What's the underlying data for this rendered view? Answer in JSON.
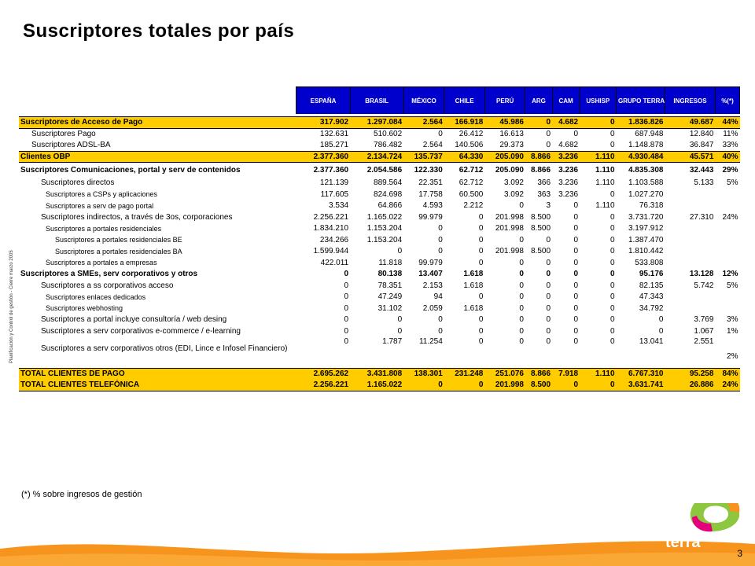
{
  "title": "Suscriptores totales por país",
  "side_note": "Planificación y Control de gestión - Cierre marzo 2005",
  "columns": [
    "ESPAÑA",
    "BRASIL",
    "MÉXICO",
    "CHILE",
    "PERÚ",
    "ARG",
    "CAM",
    "USHISP",
    "GRUPO TERRA",
    "INGRESOS",
    "%(*)"
  ],
  "rows": [
    {
      "label": "Suscriptores de Acceso de Pago",
      "values": [
        "317.902",
        "1.297.084",
        "2.564",
        "166.918",
        "45.986",
        "0",
        "4.682",
        "0",
        "1.836.826",
        "49.687",
        "44%"
      ]
    },
    {
      "label": "Suscriptores Pago",
      "values": [
        "132.631",
        "510.602",
        "0",
        "26.412",
        "16.613",
        "0",
        "0",
        "0",
        "687.948",
        "12.840",
        "11%"
      ]
    },
    {
      "label": "Suscriptores ADSL-BA",
      "values": [
        "185.271",
        "786.482",
        "2.564",
        "140.506",
        "29.373",
        "0",
        "4.682",
        "0",
        "1.148.878",
        "36.847",
        "33%"
      ]
    },
    {
      "label": "Clientes OBP",
      "values": [
        "2.377.360",
        "2.134.724",
        "135.737",
        "64.330",
        "205.090",
        "8.866",
        "3.236",
        "1.110",
        "4.930.484",
        "45.571",
        "40%"
      ]
    },
    {
      "label": "Suscriptores Comunicaciones, portal y serv de contenidos",
      "values": [
        "2.377.360",
        "2.054.586",
        "122.330",
        "62.712",
        "205.090",
        "8.866",
        "3.236",
        "1.110",
        "4.835.308",
        "32.443",
        "29%"
      ]
    },
    {
      "label": "Suscriptores directos",
      "values": [
        "121.139",
        "889.564",
        "22.351",
        "62.712",
        "3.092",
        "366",
        "3.236",
        "1.110",
        "1.103.588",
        "5.133",
        "5%"
      ]
    },
    {
      "label": "Suscriptores a CSPs y aplicaciones",
      "values": [
        "117.605",
        "824.698",
        "17.758",
        "60.500",
        "3.092",
        "363",
        "3.236",
        "0",
        "1.027.270",
        "",
        ""
      ]
    },
    {
      "label": "Suscriptores a serv de pago portal",
      "values": [
        "3.534",
        "64.866",
        "4.593",
        "2.212",
        "0",
        "3",
        "0",
        "1.110",
        "76.318",
        "",
        ""
      ]
    },
    {
      "label": "Suscriptores indirectos, a través de 3os, corporaciones",
      "values": [
        "2.256.221",
        "1.165.022",
        "99.979",
        "0",
        "201.998",
        "8.500",
        "0",
        "0",
        "3.731.720",
        "27.310",
        "24%"
      ]
    },
    {
      "label": "Suscriptores a portales residenciales",
      "values": [
        "1.834.210",
        "1.153.204",
        "0",
        "0",
        "201.998",
        "8.500",
        "0",
        "0",
        "3.197.912",
        "",
        ""
      ]
    },
    {
      "label": "Suscriptores a portales residenciales BE",
      "values": [
        "234.266",
        "1.153.204",
        "0",
        "0",
        "0",
        "0",
        "0",
        "0",
        "1.387.470",
        "",
        ""
      ]
    },
    {
      "label": "Suscriptores a portales residenciales BA",
      "values": [
        "1.599.944",
        "0",
        "0",
        "0",
        "201.998",
        "8.500",
        "0",
        "0",
        "1.810.442",
        "",
        ""
      ]
    },
    {
      "label": "Suscriptores a portales a empresas",
      "values": [
        "422.011",
        "11.818",
        "99.979",
        "0",
        "0",
        "0",
        "0",
        "0",
        "533.808",
        "",
        ""
      ]
    },
    {
      "label": "Suscriptores a SMEs, serv corporativos y otros",
      "values": [
        "0",
        "80.138",
        "13.407",
        "1.618",
        "0",
        "0",
        "0",
        "0",
        "95.176",
        "13.128",
        "12%"
      ]
    },
    {
      "label": "Suscriptores a ss corporativos acceso",
      "values": [
        "0",
        "78.351",
        "2.153",
        "1.618",
        "0",
        "0",
        "0",
        "0",
        "82.135",
        "5.742",
        "5%"
      ]
    },
    {
      "label": "Suscriptores enlaces dedicados",
      "values": [
        "0",
        "47.249",
        "94",
        "0",
        "0",
        "0",
        "0",
        "0",
        "47.343",
        "",
        ""
      ]
    },
    {
      "label": "Suscriptores webhosting",
      "values": [
        "0",
        "31.102",
        "2.059",
        "1.618",
        "0",
        "0",
        "0",
        "0",
        "34.792",
        "",
        ""
      ]
    },
    {
      "label": "Suscriptores a portal incluye consultoría / web desing",
      "values": [
        "0",
        "0",
        "0",
        "0",
        "0",
        "0",
        "0",
        "0",
        "0",
        "3.769",
        "3%"
      ]
    },
    {
      "label": "Suscriptores a serv corporativos e-commerce / e-learning",
      "values": [
        "0",
        "0",
        "0",
        "0",
        "0",
        "0",
        "0",
        "0",
        "0",
        "1.067",
        "1%"
      ]
    },
    {
      "label": "Suscriptores a serv corporativos otros (EDI, Lince e Infosel Financiero)",
      "values": [
        "0",
        "1.787",
        "11.254",
        "0",
        "0",
        "0",
        "0",
        "0",
        "13.041",
        "2.551",
        "2%"
      ]
    },
    {
      "label": "TOTAL CLIENTES DE PAGO",
      "values": [
        "2.695.262",
        "3.431.808",
        "138.301",
        "231.248",
        "251.076",
        "8.866",
        "7.918",
        "1.110",
        "6.767.310",
        "95.258",
        "84%"
      ]
    },
    {
      "label": "TOTAL CLIENTES TELEFÓNICA",
      "values": [
        "2.256.221",
        "1.165.022",
        "0",
        "0",
        "201.998",
        "8.500",
        "0",
        "0",
        "3.631.741",
        "26.886",
        "24%"
      ]
    }
  ],
  "footnote": "(*) % sobre ingresos de gestión",
  "page_number": "3",
  "logo_text": "terra",
  "colors": {
    "header_blue": "#0000cc",
    "highlight_yellow": "#ffcc00",
    "brand_orange": "#f7941d"
  }
}
